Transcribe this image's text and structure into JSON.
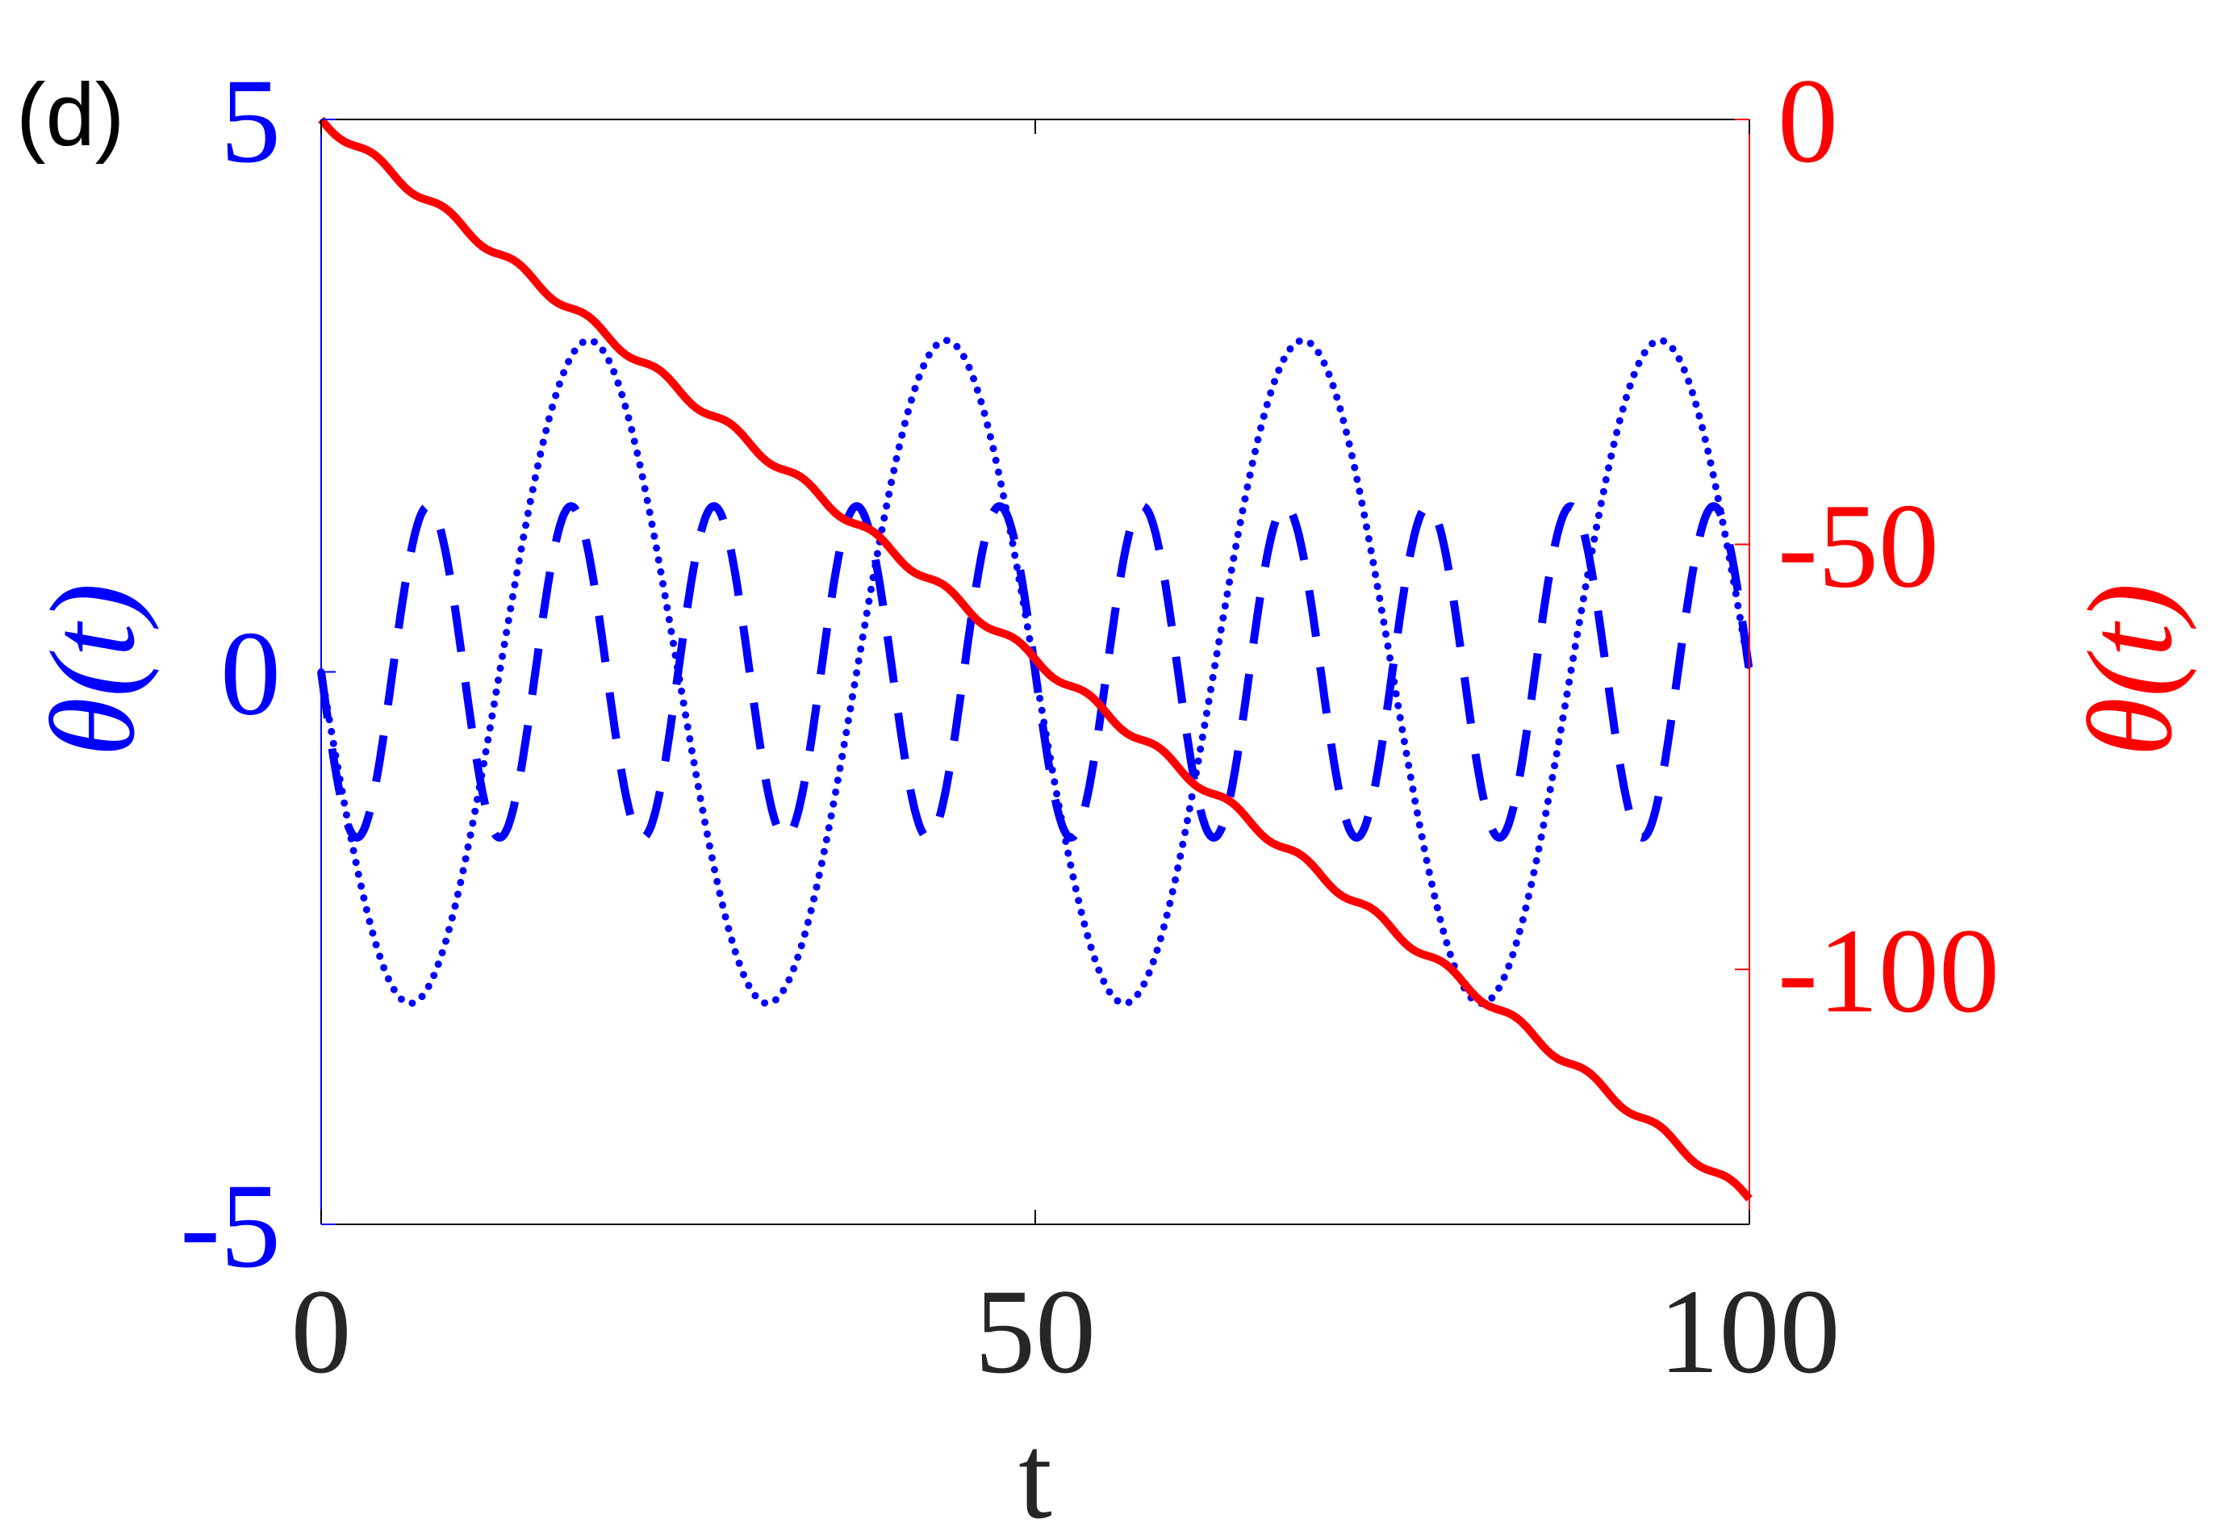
{
  "panel_label": "(d)",
  "chart_data": {
    "type": "line",
    "xlabel": "t",
    "ylabel_left": "θ(t)",
    "ylabel_right": "θ(t)",
    "xlim": [
      0,
      100
    ],
    "ylim_left": [
      -5,
      5
    ],
    "ylim_right": [
      -130,
      0
    ],
    "x_ticks": [
      0,
      50,
      100
    ],
    "y_ticks_left": [
      -5,
      0,
      5
    ],
    "y_ticks_right": [
      -100,
      -50,
      0
    ],
    "grid": false,
    "colors": {
      "left_axis": "#0000ff",
      "right_axis": "#ff0000",
      "frame": "#000000"
    },
    "series": [
      {
        "axis": "left",
        "style": "dotted",
        "color": "#0000ff",
        "function": "-3*sin(2*pi*t/25)",
        "amplitude": 3,
        "period": 25,
        "x_range": [
          0,
          100
        ]
      },
      {
        "axis": "left",
        "style": "dashed",
        "color": "#0000ff",
        "function": "-1.5*sin(2*pi*t/10)",
        "amplitude": 1.5,
        "period": 10,
        "x_range": [
          0,
          100
        ]
      },
      {
        "axis": "right",
        "style": "solid",
        "color": "#ff0000",
        "function": "-1.27*t - 0.6*sin(2*pi*t/5)",
        "slope": -1.27,
        "ripple_amplitude": 0.6,
        "ripple_period": 5,
        "x_range": [
          0,
          100
        ]
      }
    ]
  }
}
